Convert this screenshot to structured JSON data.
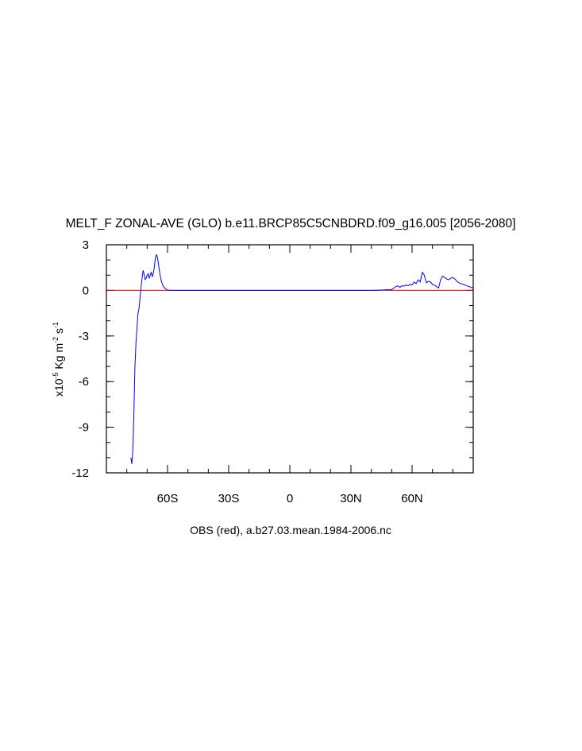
{
  "chart_data": {
    "type": "line",
    "title": "MELT_F ZONAL-AVE (GLO) b.e11.BRCP85C5CNBDRD.f09_g16.005 [2056-2080]",
    "ylabel": {
      "prefix": "x10",
      "exp1": "-5",
      "middle": " Kg m",
      "exp2": "-2",
      "middle2": " s",
      "exp3": "-1"
    },
    "footer": "OBS (red), a.b27.03.mean.1984-2006.nc",
    "xlim": [
      -90,
      90
    ],
    "ylim": [
      -12,
      3
    ],
    "x_ticks": [
      {
        "value": -60,
        "label": "60S"
      },
      {
        "value": -30,
        "label": "30S"
      },
      {
        "value": 0,
        "label": "0"
      },
      {
        "value": 30,
        "label": "30N"
      },
      {
        "value": 60,
        "label": "60N"
      }
    ],
    "x_minor_step": 10,
    "y_ticks": [
      {
        "value": 3,
        "label": "3"
      },
      {
        "value": 0,
        "label": "0"
      },
      {
        "value": -3,
        "label": "-3"
      },
      {
        "value": -6,
        "label": "-6"
      },
      {
        "value": -9,
        "label": "-9"
      },
      {
        "value": -12,
        "label": "-12"
      }
    ],
    "y_minor_step": 1,
    "grid": false,
    "series": [
      {
        "color": "#0000ff",
        "x": [
          -78,
          -77.5,
          -77,
          -76.5,
          -76,
          -75.5,
          -75,
          -74.5,
          -74,
          -73.5,
          -73,
          -72.5,
          -72,
          -71.5,
          -71,
          -70.5,
          -70,
          -69.5,
          -69,
          -68.5,
          -68,
          -67.5,
          -67,
          -66.5,
          -66,
          -65.5,
          -65,
          -64.5,
          -64,
          -63.5,
          -63,
          -62.5,
          -62,
          -61,
          -60,
          -59.5,
          -59,
          -58,
          -57,
          -56,
          -50,
          -40,
          -20,
          0,
          20,
          35,
          40,
          46,
          48,
          50,
          51,
          52,
          53,
          54,
          55,
          56,
          57,
          58,
          59,
          60,
          61,
          62,
          63,
          64,
          65,
          66,
          67,
          68,
          69,
          70,
          71,
          72,
          73,
          74,
          75,
          76,
          77,
          78,
          79,
          80,
          81,
          82,
          83,
          84,
          85,
          86,
          87,
          88,
          89,
          90
        ],
        "y": [
          -11,
          -11.4,
          -10.5,
          -8,
          -5,
          -3.5,
          -2.5,
          -1.5,
          -1.2,
          -0.5,
          0.2,
          0.8,
          1.3,
          1.1,
          0.7,
          0.8,
          1.0,
          1.1,
          0.8,
          1.0,
          1.2,
          0.9,
          1.1,
          1.5,
          2.1,
          2.35,
          2.2,
          1.8,
          1.3,
          0.9,
          0.6,
          0.4,
          0.25,
          0.1,
          0.03,
          0.02,
          0.01,
          0.0,
          0.0,
          0.0,
          0.0,
          0.0,
          0.0,
          0.0,
          0.0,
          0.0,
          0.0,
          0.03,
          0.05,
          0.05,
          0.15,
          0.25,
          0.3,
          0.2,
          0.3,
          0.28,
          0.35,
          0.3,
          0.4,
          0.35,
          0.55,
          0.45,
          0.7,
          0.55,
          1.2,
          1.0,
          0.5,
          0.6,
          0.55,
          0.4,
          0.35,
          0.25,
          0.15,
          0.7,
          0.95,
          0.85,
          0.75,
          0.7,
          0.8,
          0.85,
          0.75,
          0.6,
          0.5,
          0.45,
          0.4,
          0.35,
          0.3,
          0.25,
          0.2,
          0.15
        ]
      },
      {
        "color": "#ff0000",
        "x": [
          -90,
          90
        ],
        "y": [
          0,
          0
        ]
      }
    ]
  }
}
